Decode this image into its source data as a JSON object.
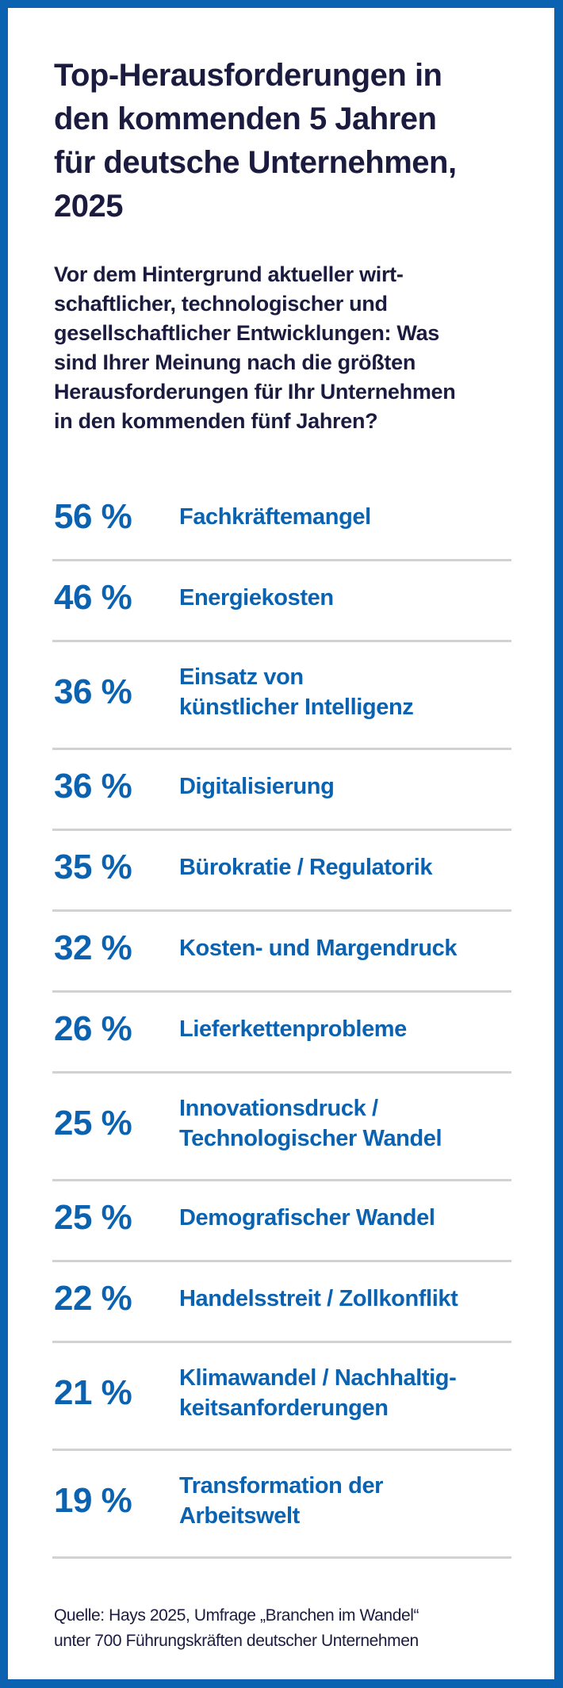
{
  "title": "Top-Herausforderungen in\nden kommenden 5 Jahren\nfür deutsche Unternehmen,\n2025",
  "question": "Vor dem Hintergrund aktueller wirt-\nschaftlicher, technologischer und\ngesellschaftlicher Entwicklungen: Was\nsind Ihrer Meinung nach die größten\nHerausforderungen für Ihr Unternehmen\nin den kommenden fünf Jahren?",
  "colors": {
    "accent": "#0a62b0",
    "text": "#1b1b40",
    "divider": "#d2d2d4"
  },
  "items": [
    {
      "value": "56 %",
      "label": "Fachkräftemangel"
    },
    {
      "value": "46 %",
      "label": "Energiekosten"
    },
    {
      "value": "36 %",
      "label": "Einsatz von\nkünstlicher Intelligenz"
    },
    {
      "value": "36 %",
      "label": "Digitalisierung"
    },
    {
      "value": "35 %",
      "label": "Bürokratie / Regulatorik"
    },
    {
      "value": "32 %",
      "label": "Kosten- und Margendruck"
    },
    {
      "value": "26 %",
      "label": "Lieferkettenprobleme"
    },
    {
      "value": "25 %",
      "label": "Innovationsdruck /\nTechnologischer Wandel"
    },
    {
      "value": "25 %",
      "label": "Demografischer Wandel"
    },
    {
      "value": "22 %",
      "label": "Handelsstreit / Zollkonflikt"
    },
    {
      "value": "21 %",
      "label": "Klimawandel / Nachhaltig-\nkeitsanforderungen"
    },
    {
      "value": "19 %",
      "label": "Transformation der\nArbeitswelt"
    }
  ],
  "source": "Quelle: Hays 2025, Umfrage „Branchen im Wandel“\nunter 700 Führungskräften deutscher Unternehmen"
}
